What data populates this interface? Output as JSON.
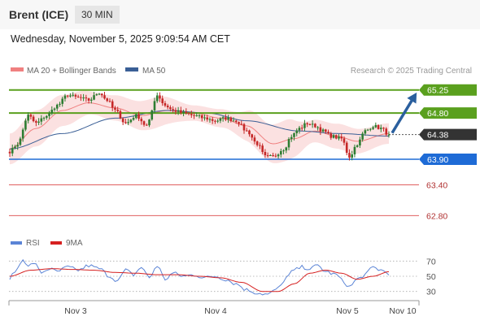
{
  "header": {
    "instrument": "Brent (ICE)",
    "timeframe": "30 MIN",
    "datetime": "Wednesday, November 5, 2025 9:09:54 AM CET"
  },
  "legend": {
    "ma20_label": "MA 20 + Bollinger Bands",
    "ma50_label": "MA 50",
    "copyright": "Research © 2025 Trading Central",
    "ma20_color": "#f08080",
    "ma50_color": "#3a5f96"
  },
  "colors": {
    "up_candle": "#2e7d32",
    "down_candle": "#c62828",
    "resistance": "#5aa01e",
    "support": "#1e6bd6",
    "minor_support": "#e06060",
    "current": "#333333",
    "band_fill": "#fadada",
    "arrow": "#2a5f9e",
    "rsi": "#5b84d6",
    "rsi_ma": "#d62020"
  },
  "chart_data": [
    {
      "type": "candlestick",
      "title": "Brent (ICE) 30 MIN",
      "x_tick_labels": [
        "Nov 3",
        "Nov 4",
        "Nov 5",
        "Nov 10"
      ],
      "ylim": [
        62.6,
        65.42
      ],
      "levels": [
        {
          "label": "65.25",
          "value": 65.25,
          "kind": "resistance"
        },
        {
          "label": "64.80",
          "value": 64.8,
          "kind": "resistance"
        },
        {
          "label": "64.38",
          "value": 64.38,
          "kind": "current"
        },
        {
          "label": "63.90",
          "value": 63.9,
          "kind": "support"
        },
        {
          "label": "63.40",
          "value": 63.4,
          "kind": "minor-support"
        },
        {
          "label": "62.80",
          "value": 62.8,
          "kind": "minor-support"
        }
      ],
      "close_anchors": [
        [
          0,
          64.05
        ],
        [
          3,
          64.2
        ],
        [
          7,
          64.75
        ],
        [
          10,
          64.6
        ],
        [
          14,
          64.75
        ],
        [
          18,
          64.95
        ],
        [
          22,
          65.15
        ],
        [
          26,
          65.1
        ],
        [
          30,
          65.05
        ],
        [
          34,
          65.2
        ],
        [
          37,
          65.05
        ],
        [
          40,
          64.85
        ],
        [
          44,
          64.6
        ],
        [
          48,
          64.75
        ],
        [
          52,
          64.55
        ],
        [
          56,
          65.15
        ],
        [
          59,
          64.95
        ],
        [
          62,
          64.85
        ],
        [
          66,
          64.8
        ],
        [
          70,
          64.75
        ],
        [
          74,
          64.7
        ],
        [
          78,
          64.65
        ],
        [
          82,
          64.7
        ],
        [
          86,
          64.65
        ],
        [
          90,
          64.45
        ],
        [
          94,
          64.2
        ],
        [
          97,
          63.95
        ],
        [
          100,
          63.95
        ],
        [
          104,
          64.1
        ],
        [
          107,
          64.35
        ],
        [
          110,
          64.5
        ],
        [
          113,
          64.6
        ],
        [
          116,
          64.55
        ],
        [
          119,
          64.45
        ],
        [
          122,
          64.35
        ],
        [
          126,
          64.3
        ],
        [
          129,
          63.95
        ],
        [
          132,
          64.2
        ],
        [
          135,
          64.45
        ],
        [
          138,
          64.55
        ],
        [
          141,
          64.5
        ],
        [
          144,
          64.38
        ]
      ],
      "ma20_anchors": [
        [
          0,
          64.1
        ],
        [
          10,
          64.5
        ],
        [
          20,
          64.85
        ],
        [
          30,
          65.0
        ],
        [
          40,
          64.9
        ],
        [
          50,
          64.75
        ],
        [
          60,
          64.85
        ],
        [
          70,
          64.8
        ],
        [
          80,
          64.7
        ],
        [
          90,
          64.55
        ],
        [
          100,
          64.2
        ],
        [
          108,
          64.3
        ],
        [
          116,
          64.45
        ],
        [
          124,
          64.35
        ],
        [
          132,
          64.25
        ],
        [
          144,
          64.4
        ]
      ],
      "band_width_anchors": [
        [
          0,
          0.3
        ],
        [
          10,
          0.35
        ],
        [
          22,
          0.3
        ],
        [
          32,
          0.22
        ],
        [
          42,
          0.25
        ],
        [
          55,
          0.3
        ],
        [
          70,
          0.15
        ],
        [
          82,
          0.18
        ],
        [
          95,
          0.35
        ],
        [
          105,
          0.4
        ],
        [
          115,
          0.22
        ],
        [
          128,
          0.25
        ],
        [
          144,
          0.2
        ]
      ],
      "ma50_anchors": [
        [
          0,
          64.1
        ],
        [
          20,
          64.4
        ],
        [
          40,
          64.7
        ],
        [
          60,
          64.85
        ],
        [
          75,
          64.8
        ],
        [
          90,
          64.65
        ],
        [
          110,
          64.45
        ],
        [
          125,
          64.4
        ],
        [
          144,
          64.35
        ]
      ],
      "projection": {
        "from_index": 144,
        "from_value": 64.38,
        "to_value": 65.25
      }
    },
    {
      "type": "line",
      "title": "RSI",
      "series": [
        {
          "name": "RSI"
        },
        {
          "name": "9MA"
        }
      ],
      "yticks": [
        70,
        50,
        30
      ],
      "ylim": [
        20,
        80
      ],
      "rsi_anchors": [
        [
          0,
          48
        ],
        [
          3,
          60
        ],
        [
          5,
          74
        ],
        [
          7,
          62
        ],
        [
          9,
          68
        ],
        [
          12,
          55
        ],
        [
          15,
          60
        ],
        [
          18,
          56
        ],
        [
          22,
          62
        ],
        [
          26,
          58
        ],
        [
          30,
          64
        ],
        [
          34,
          60
        ],
        [
          38,
          50
        ],
        [
          41,
          44
        ],
        [
          44,
          58
        ],
        [
          47,
          52
        ],
        [
          50,
          62
        ],
        [
          53,
          48
        ],
        [
          56,
          64
        ],
        [
          59,
          46
        ],
        [
          62,
          54
        ],
        [
          66,
          50
        ],
        [
          70,
          52
        ],
        [
          74,
          48
        ],
        [
          78,
          50
        ],
        [
          82,
          46
        ],
        [
          86,
          40
        ],
        [
          90,
          32
        ],
        [
          94,
          28
        ],
        [
          98,
          26
        ],
        [
          102,
          34
        ],
        [
          105,
          48
        ],
        [
          108,
          58
        ],
        [
          111,
          62
        ],
        [
          114,
          60
        ],
        [
          117,
          64
        ],
        [
          120,
          56
        ],
        [
          124,
          52
        ],
        [
          127,
          42
        ],
        [
          129,
          36
        ],
        [
          132,
          46
        ],
        [
          135,
          52
        ],
        [
          138,
          62
        ],
        [
          141,
          58
        ],
        [
          144,
          54
        ]
      ],
      "rsi_ma_anchors": [
        [
          0,
          50
        ],
        [
          8,
          58
        ],
        [
          16,
          60
        ],
        [
          24,
          59
        ],
        [
          32,
          58
        ],
        [
          40,
          55
        ],
        [
          48,
          54
        ],
        [
          56,
          52
        ],
        [
          64,
          52
        ],
        [
          72,
          50
        ],
        [
          80,
          48
        ],
        [
          88,
          42
        ],
        [
          96,
          30
        ],
        [
          102,
          30
        ],
        [
          108,
          40
        ],
        [
          114,
          54
        ],
        [
          120,
          58
        ],
        [
          126,
          54
        ],
        [
          132,
          46
        ],
        [
          138,
          50
        ],
        [
          144,
          56
        ]
      ]
    }
  ]
}
